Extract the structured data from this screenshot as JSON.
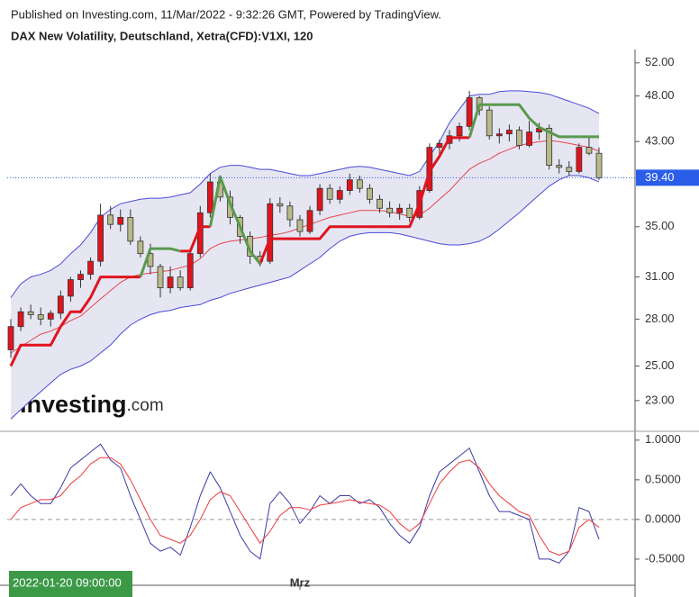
{
  "chart_data": [
    {
      "type": "candlestick",
      "source": "Published on Investing.com, 11/Mar/2022 - 9:32:26 GMT, Powered by TradingView.",
      "title": "DAX New Volatility, Deutschland, Xetra(CFD):V1XI, 120",
      "watermark": {
        "name": "Investing",
        "suffix": ".com"
      },
      "categories": [
        "2022-01-20 09:00:00",
        null,
        null,
        null,
        null,
        null,
        null,
        null,
        null,
        null,
        null,
        null,
        null,
        null,
        null,
        null,
        null,
        null,
        null,
        null,
        null,
        null,
        null,
        null,
        null,
        null,
        null,
        null,
        null,
        "Mrz",
        null,
        null,
        null,
        null,
        null,
        null,
        null,
        null,
        null,
        null,
        null,
        null,
        null,
        null,
        null,
        null,
        null,
        null,
        null,
        null,
        null,
        null,
        null,
        null,
        null,
        null,
        null,
        null,
        null,
        null
      ],
      "open": [
        26.0,
        27.5,
        28.5,
        28.3,
        28.0,
        28.4,
        29.6,
        30.8,
        31.2,
        32.2,
        36.0,
        35.2,
        35.8,
        33.8,
        32.8,
        31.8,
        30.2,
        31.0,
        30.2,
        32.8,
        36.2,
        39.0,
        37.6,
        35.8,
        34.2,
        32.6,
        32.2,
        37.0,
        36.8,
        35.6,
        34.6,
        36.4,
        38.4,
        37.4,
        38.2,
        39.2,
        38.4,
        37.4,
        36.6,
        36.2,
        36.6,
        35.8,
        38.2,
        42.4,
        42.8,
        43.6,
        44.6,
        47.8,
        46.4,
        43.6,
        43.8,
        44.2,
        42.6,
        44.0,
        44.4,
        40.6,
        40.4,
        40.0,
        42.4,
        41.8
      ],
      "high": [
        28.0,
        28.8,
        29.0,
        28.8,
        28.6,
        30.0,
        31.0,
        31.5,
        32.5,
        37.0,
        36.8,
        36.5,
        36.5,
        34.2,
        33.6,
        32.0,
        31.8,
        31.5,
        33.2,
        36.8,
        39.8,
        39.5,
        38.2,
        36.0,
        34.6,
        33.0,
        37.5,
        37.6,
        37.2,
        36.0,
        36.8,
        38.8,
        38.8,
        38.6,
        39.8,
        39.6,
        38.8,
        37.8,
        37.2,
        37.0,
        37.0,
        38.6,
        42.8,
        43.2,
        44.2,
        45.0,
        48.6,
        48.0,
        46.8,
        44.4,
        44.8,
        44.6,
        45.2,
        45.0,
        44.8,
        41.2,
        41.0,
        42.8,
        43.6,
        42.4
      ],
      "low": [
        25.5,
        27.2,
        28.0,
        27.6,
        27.5,
        28.0,
        29.2,
        30.2,
        30.8,
        31.8,
        34.8,
        34.6,
        33.5,
        32.5,
        31.2,
        29.5,
        29.8,
        30.0,
        30.0,
        32.5,
        35.8,
        37.2,
        35.2,
        33.6,
        32.0,
        31.8,
        32.0,
        36.2,
        35.0,
        34.2,
        34.4,
        36.0,
        37.0,
        37.0,
        37.8,
        38.0,
        37.0,
        36.2,
        35.8,
        35.6,
        35.4,
        35.6,
        38.0,
        41.6,
        42.2,
        43.0,
        44.2,
        45.8,
        43.2,
        42.8,
        43.0,
        42.2,
        42.4,
        43.2,
        40.2,
        39.8,
        39.6,
        39.8,
        41.6,
        39.2
      ],
      "close": [
        27.5,
        28.5,
        28.3,
        28.0,
        28.4,
        29.6,
        30.8,
        31.2,
        32.2,
        36.0,
        35.2,
        35.8,
        33.8,
        32.8,
        31.8,
        30.2,
        31.0,
        30.2,
        32.8,
        36.2,
        39.0,
        37.6,
        35.8,
        34.2,
        32.6,
        32.2,
        37.0,
        36.8,
        35.6,
        34.6,
        36.4,
        38.4,
        37.4,
        38.2,
        39.2,
        38.4,
        37.4,
        36.6,
        36.2,
        36.6,
        35.8,
        38.2,
        42.4,
        42.8,
        43.6,
        44.6,
        47.8,
        46.4,
        43.6,
        43.8,
        44.2,
        42.6,
        44.0,
        44.4,
        40.6,
        40.4,
        40.0,
        42.4,
        41.8,
        39.4
      ],
      "up_color": "#e0141e",
      "down_color": "#b9b98c",
      "band": {
        "line_color": "#4a4ad8",
        "fill": "#e6e6f3",
        "upper": [
          29.5,
          30.5,
          31.0,
          31.2,
          31.5,
          32.0,
          32.8,
          33.5,
          34.5,
          35.8,
          36.5,
          37.0,
          37.2,
          37.4,
          37.5,
          37.5,
          37.6,
          37.8,
          38.0,
          38.8,
          39.8,
          40.4,
          40.6,
          40.6,
          40.4,
          40.2,
          40.2,
          40.0,
          39.8,
          39.6,
          39.6,
          39.8,
          40.0,
          40.2,
          40.4,
          40.5,
          40.4,
          40.2,
          40.0,
          39.8,
          39.6,
          40.0,
          41.5,
          43.0,
          45.0,
          46.5,
          48.0,
          48.2,
          48.2,
          48.5,
          48.6,
          48.6,
          48.5,
          48.4,
          48.2,
          47.8,
          47.4,
          47.0,
          46.6,
          46.0
        ],
        "lower": [
          22.0,
          22.5,
          23.0,
          23.5,
          24.0,
          24.5,
          24.8,
          25.0,
          25.3,
          25.8,
          26.3,
          27.0,
          27.6,
          28.0,
          28.3,
          28.5,
          28.6,
          28.8,
          28.9,
          29.0,
          29.3,
          29.5,
          29.8,
          30.0,
          30.2,
          30.4,
          30.6,
          30.8,
          31.0,
          31.5,
          32.0,
          32.5,
          33.2,
          33.8,
          34.2,
          34.4,
          34.5,
          34.5,
          34.5,
          34.4,
          34.2,
          34.0,
          33.8,
          33.6,
          33.5,
          33.5,
          33.6,
          33.8,
          34.2,
          34.8,
          35.5,
          36.2,
          37.0,
          37.8,
          38.6,
          39.2,
          39.6,
          39.6,
          39.4,
          39.0
        ]
      },
      "series": [
        {
          "color": "#e8454a",
          "width": 1,
          "values": [
            25.8,
            26.2,
            26.6,
            27.0,
            27.2,
            27.5,
            27.9,
            28.2,
            28.8,
            29.4,
            30.0,
            30.6,
            31.0,
            31.2,
            31.3,
            31.4,
            31.5,
            31.7,
            31.9,
            32.4,
            33.2,
            33.6,
            33.8,
            33.9,
            34.0,
            34.1,
            34.3,
            34.4,
            34.6,
            34.9,
            35.2,
            35.5,
            35.8,
            36.0,
            36.2,
            36.4,
            36.4,
            36.4,
            36.3,
            36.1,
            35.9,
            36.0,
            36.6,
            37.4,
            38.2,
            39.2,
            40.2,
            40.8,
            41.2,
            41.8,
            42.2,
            42.6,
            42.8,
            43.0,
            43.1,
            43.0,
            42.8,
            42.6,
            42.4,
            42.0
          ]
        },
        {
          "color": "#e0141e",
          "width": 3,
          "values": [
            25.0,
            26.3,
            26.3,
            26.3,
            26.3,
            27.5,
            28.5,
            28.5,
            29.5,
            31.0,
            31.0,
            31.0,
            31.0,
            31.0,
            null,
            null,
            null,
            33.0,
            33.0,
            35.0,
            35.0,
            null,
            null,
            null,
            null,
            32.0,
            34.0,
            34.0,
            34.0,
            34.0,
            34.0,
            34.0,
            35.0,
            35.0,
            35.0,
            35.0,
            35.0,
            35.0,
            35.0,
            35.0,
            35.0,
            37.0,
            40.0,
            41.5,
            43.4,
            43.4,
            43.4,
            null,
            null,
            null,
            null,
            null,
            null,
            null,
            null,
            null,
            null,
            null,
            null,
            null
          ]
        },
        {
          "color": "#5a9a4e",
          "width": 3,
          "values": [
            null,
            null,
            null,
            null,
            null,
            null,
            null,
            null,
            null,
            null,
            null,
            null,
            null,
            31.0,
            33.2,
            33.2,
            33.2,
            33.0,
            null,
            null,
            35.0,
            39.5,
            37.0,
            35.0,
            33.0,
            32.0,
            null,
            null,
            null,
            null,
            null,
            null,
            null,
            null,
            null,
            null,
            null,
            null,
            null,
            null,
            null,
            null,
            null,
            null,
            null,
            null,
            43.4,
            47.0,
            47.0,
            47.0,
            47.0,
            47.0,
            45.5,
            44.5,
            44.0,
            43.5,
            43.5,
            43.5,
            43.5,
            43.5
          ]
        }
      ],
      "last_price": {
        "value": 39.4,
        "label": "39.40",
        "color": "#2a5ee8"
      },
      "log_scale": true,
      "ylim": [
        21.4,
        53.7
      ],
      "yticks": [
        {
          "value": 52,
          "label": "52.00"
        },
        {
          "value": 48,
          "label": "48.00"
        },
        {
          "value": 43,
          "label": "43.00"
        },
        {
          "value": 35,
          "label": "35.00"
        },
        {
          "value": 31,
          "label": "31.00"
        },
        {
          "value": 28,
          "label": "28.00"
        },
        {
          "value": 25,
          "label": "25.00"
        },
        {
          "value": 23,
          "label": "23.00"
        }
      ]
    },
    {
      "type": "line",
      "series": [
        {
          "color": "#3b3ba8",
          "width": 1,
          "values": [
            0.3,
            0.45,
            0.3,
            0.2,
            0.2,
            0.4,
            0.65,
            0.75,
            0.85,
            0.95,
            0.75,
            0.65,
            0.3,
            0.0,
            -0.3,
            -0.4,
            -0.35,
            -0.45,
            -0.1,
            0.3,
            0.6,
            0.4,
            0.1,
            -0.2,
            -0.4,
            -0.5,
            0.2,
            0.35,
            0.2,
            -0.05,
            0.1,
            0.3,
            0.2,
            0.3,
            0.3,
            0.2,
            0.25,
            0.15,
            -0.05,
            -0.2,
            -0.3,
            -0.1,
            0.3,
            0.6,
            0.7,
            0.8,
            0.9,
            0.6,
            0.3,
            0.1,
            0.1,
            0.05,
            0.0,
            -0.5,
            -0.5,
            -0.55,
            -0.4,
            0.15,
            0.1,
            -0.25
          ]
        },
        {
          "color": "#ee3a3a",
          "width": 1,
          "values": [
            0.0,
            0.15,
            0.2,
            0.25,
            0.25,
            0.3,
            0.45,
            0.55,
            0.7,
            0.78,
            0.78,
            0.7,
            0.5,
            0.25,
            0.0,
            -0.2,
            -0.25,
            -0.3,
            -0.2,
            0.0,
            0.25,
            0.35,
            0.3,
            0.1,
            -0.1,
            -0.3,
            -0.15,
            0.05,
            0.15,
            0.15,
            0.12,
            0.18,
            0.2,
            0.22,
            0.25,
            0.22,
            0.2,
            0.18,
            0.1,
            -0.05,
            -0.15,
            -0.05,
            0.2,
            0.45,
            0.6,
            0.72,
            0.75,
            0.65,
            0.45,
            0.3,
            0.2,
            0.1,
            0.05,
            -0.2,
            -0.4,
            -0.45,
            -0.4,
            -0.1,
            0.0,
            -0.1
          ]
        }
      ],
      "ylim": [
        -0.83,
        1.1
      ],
      "yticks": [
        {
          "value": 1,
          "label": "1.0000"
        },
        {
          "value": 0.5,
          "label": "0.5000"
        },
        {
          "value": 0,
          "label": "0.0000"
        },
        {
          "value": -0.5,
          "label": "-0.5000"
        }
      ]
    }
  ]
}
